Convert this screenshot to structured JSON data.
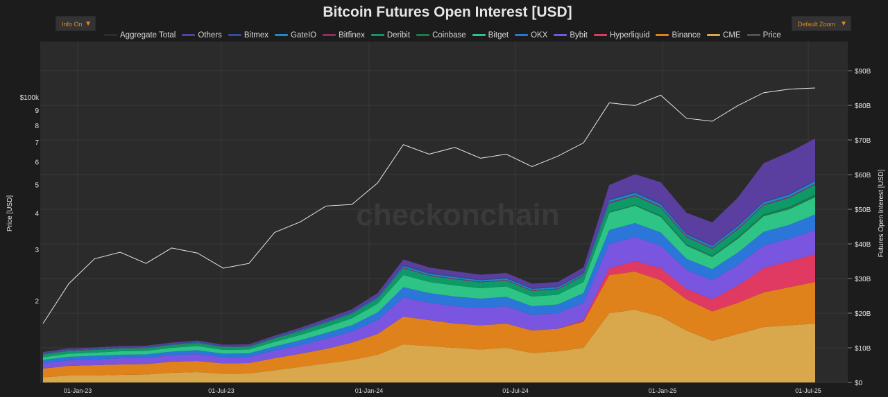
{
  "header": {
    "title": "Bitcoin Futures Open Interest [USD]"
  },
  "controls": {
    "info": {
      "label": "Info On",
      "arrow": "▼"
    },
    "zoom": {
      "label": "Default Zoom",
      "arrow": "▼"
    }
  },
  "chart_data": {
    "type": "area",
    "stacked": true,
    "title": "Bitcoin Futures Open Interest [USD]",
    "xlabel": "",
    "ylabel_left": "Price [USD]",
    "ylabel_right": "Futures Open Interest [USD]",
    "watermark": "checkonchain",
    "x_ticks": [
      "01-Jan-23",
      "01-Jul-23",
      "01-Jan-24",
      "01-Jul-24",
      "01-Jan-25",
      "01-Jul-25"
    ],
    "y_right_ticks": [
      "$0",
      "$10B",
      "$20B",
      "$30B",
      "$40B",
      "$50B",
      "$60B",
      "$70B",
      "$80B",
      "$90B"
    ],
    "y_right_range": [
      0,
      90
    ],
    "y_left_scale": "log",
    "y_left_ticks": [
      "2",
      "3",
      "4",
      "5",
      "6",
      "7",
      "8",
      "9",
      "$100k"
    ],
    "y_left_tick_values": [
      20000,
      30000,
      40000,
      50000,
      60000,
      70000,
      80000,
      90000,
      100000
    ],
    "legend_placement": "top",
    "grid": true,
    "x": [
      "2023-01",
      "2023-02",
      "2023-03",
      "2023-04",
      "2023-05",
      "2023-06",
      "2023-07",
      "2023-08",
      "2023-09",
      "2023-10",
      "2023-11",
      "2023-12",
      "2024-01",
      "2024-02",
      "2024-03",
      "2024-04",
      "2024-05",
      "2024-06",
      "2024-07",
      "2024-08",
      "2024-09",
      "2024-10",
      "2024-11",
      "2024-12",
      "2025-01",
      "2025-02",
      "2025-03",
      "2025-04",
      "2025-05",
      "2025-06",
      "2025-07"
    ],
    "price": [
      16800,
      23000,
      28000,
      29500,
      27000,
      30500,
      29300,
      26000,
      27000,
      34500,
      37500,
      42500,
      43000,
      51000,
      69000,
      64000,
      67500,
      62000,
      64000,
      58000,
      63000,
      70000,
      96000,
      94000,
      102000,
      85000,
      83000,
      94000,
      104000,
      107000,
      108000
    ],
    "series": [
      {
        "name": "CME",
        "values": [
          1.5,
          2.0,
          2.0,
          2.2,
          2.3,
          2.8,
          3.0,
          2.5,
          2.6,
          3.5,
          4.5,
          5.5,
          6.5,
          8.0,
          11.0,
          10.5,
          10.0,
          9.5,
          10.0,
          8.5,
          9.0,
          10.0,
          20.0,
          21.0,
          19.0,
          15.0,
          12.0,
          14.0,
          16.0,
          16.5,
          17.0
        ]
      },
      {
        "name": "Binance",
        "values": [
          2.5,
          2.8,
          3.0,
          3.0,
          3.0,
          3.2,
          3.2,
          3.0,
          3.0,
          3.5,
          3.8,
          4.2,
          5.0,
          6.0,
          8.0,
          7.5,
          7.0,
          7.0,
          7.0,
          6.5,
          6.5,
          7.5,
          11.0,
          11.0,
          10.5,
          9.0,
          8.5,
          9.0,
          10.0,
          11.0,
          12.0
        ]
      },
      {
        "name": "Hyperliquid",
        "values": [
          0,
          0,
          0,
          0,
          0,
          0,
          0,
          0,
          0,
          0,
          0,
          0,
          0,
          0,
          0,
          0,
          0,
          0,
          0,
          0,
          0,
          0.5,
          2.0,
          3.0,
          3.5,
          3.0,
          3.5,
          5.0,
          7.0,
          7.5,
          8.0
        ]
      },
      {
        "name": "Bybit",
        "values": [
          1.5,
          1.6,
          1.7,
          1.8,
          1.8,
          1.9,
          2.0,
          1.8,
          1.8,
          2.2,
          2.5,
          3.0,
          3.2,
          4.0,
          5.5,
          5.0,
          5.0,
          5.0,
          5.0,
          4.5,
          4.5,
          5.0,
          7.0,
          7.0,
          6.5,
          5.5,
          5.5,
          6.0,
          6.5,
          6.5,
          7.0
        ]
      },
      {
        "name": "OKX",
        "values": [
          1.0,
          1.0,
          1.0,
          1.0,
          1.0,
          1.0,
          1.1,
          1.0,
          1.0,
          1.2,
          1.4,
          1.6,
          1.8,
          2.2,
          3.0,
          2.8,
          2.8,
          2.7,
          2.7,
          2.5,
          2.5,
          2.8,
          4.0,
          4.0,
          3.8,
          3.2,
          3.2,
          3.5,
          4.0,
          4.0,
          4.5
        ]
      },
      {
        "name": "Bitget",
        "values": [
          0.8,
          0.9,
          0.9,
          1.0,
          1.0,
          1.1,
          1.2,
          1.1,
          1.1,
          1.3,
          1.5,
          1.7,
          2.0,
          2.5,
          3.5,
          3.2,
          3.2,
          3.0,
          3.0,
          2.8,
          2.8,
          3.2,
          5.0,
          5.0,
          4.5,
          3.8,
          3.5,
          4.0,
          4.5,
          4.5,
          5.0
        ]
      },
      {
        "name": "Coinbase",
        "values": [
          0,
          0,
          0,
          0,
          0,
          0,
          0,
          0,
          0,
          0,
          0,
          0,
          0,
          0,
          0,
          0,
          0,
          0,
          0,
          0,
          0,
          0,
          0.2,
          0.3,
          0.4,
          0.4,
          0.4,
          0.5,
          0.6,
          0.7,
          0.8
        ]
      },
      {
        "name": "Deribit",
        "values": [
          0.8,
          0.8,
          0.8,
          0.8,
          0.8,
          0.8,
          0.9,
          0.8,
          0.8,
          1.0,
          1.1,
          1.2,
          1.3,
          1.5,
          2.0,
          1.8,
          1.8,
          1.7,
          1.7,
          1.6,
          1.6,
          1.8,
          2.5,
          2.5,
          2.3,
          2.0,
          2.0,
          2.2,
          2.5,
          2.6,
          2.8
        ]
      },
      {
        "name": "Bitfinex",
        "values": [
          0.1,
          0.1,
          0.1,
          0.1,
          0.1,
          0.1,
          0.1,
          0.1,
          0.1,
          0.1,
          0.1,
          0.1,
          0.1,
          0.1,
          0.2,
          0.2,
          0.2,
          0.2,
          0.2,
          0.2,
          0.2,
          0.2,
          0.3,
          0.3,
          0.3,
          0.3,
          0.3,
          0.3,
          0.3,
          0.3,
          0.3
        ]
      },
      {
        "name": "GateIO",
        "values": [
          0.1,
          0.1,
          0.1,
          0.1,
          0.1,
          0.1,
          0.1,
          0.1,
          0.1,
          0.1,
          0.2,
          0.2,
          0.2,
          0.3,
          0.4,
          0.4,
          0.4,
          0.4,
          0.4,
          0.4,
          0.4,
          0.4,
          0.6,
          0.6,
          0.6,
          0.5,
          0.5,
          0.6,
          0.6,
          0.6,
          0.7
        ]
      },
      {
        "name": "Bitmex",
        "values": [
          0.2,
          0.2,
          0.2,
          0.2,
          0.2,
          0.2,
          0.2,
          0.2,
          0.2,
          0.2,
          0.2,
          0.3,
          0.3,
          0.3,
          0.4,
          0.4,
          0.3,
          0.3,
          0.3,
          0.3,
          0.3,
          0.3,
          0.4,
          0.4,
          0.4,
          0.3,
          0.3,
          0.3,
          0.3,
          0.3,
          0.3
        ]
      },
      {
        "name": "Others",
        "values": [
          0.3,
          0.3,
          0.3,
          0.3,
          0.3,
          0.3,
          0.3,
          0.3,
          0.3,
          0.4,
          0.5,
          0.6,
          0.7,
          0.9,
          1.5,
          1.4,
          1.4,
          1.3,
          1.3,
          1.2,
          1.2,
          1.5,
          4.0,
          5.0,
          6.0,
          6.0,
          6.5,
          8.0,
          11.0,
          12.0,
          12.0
        ]
      }
    ],
    "legend": [
      {
        "name": "Aggregate Total",
        "color": "#555555",
        "kind": "line"
      },
      {
        "name": "Others",
        "color": "#5b3fa0",
        "kind": "area"
      },
      {
        "name": "Bitmex",
        "color": "#2f4f9a",
        "kind": "area"
      },
      {
        "name": "GateIO",
        "color": "#1f88c7",
        "kind": "area"
      },
      {
        "name": "Bitfinex",
        "color": "#8f2e5e",
        "kind": "area"
      },
      {
        "name": "Deribit",
        "color": "#0e9a68",
        "kind": "area"
      },
      {
        "name": "Coinbase",
        "color": "#1e7a4c",
        "kind": "area"
      },
      {
        "name": "Bitget",
        "color": "#2ec486",
        "kind": "area"
      },
      {
        "name": "OKX",
        "color": "#2b77d9",
        "kind": "area"
      },
      {
        "name": "Bybit",
        "color": "#7a55e0",
        "kind": "area"
      },
      {
        "name": "Hyperliquid",
        "color": "#e03a63",
        "kind": "area"
      },
      {
        "name": "Binance",
        "color": "#e0821c",
        "kind": "area"
      },
      {
        "name": "CME",
        "color": "#d9a84c",
        "kind": "area"
      },
      {
        "name": "Price",
        "color": "#e0e0e0",
        "kind": "line"
      }
    ]
  }
}
